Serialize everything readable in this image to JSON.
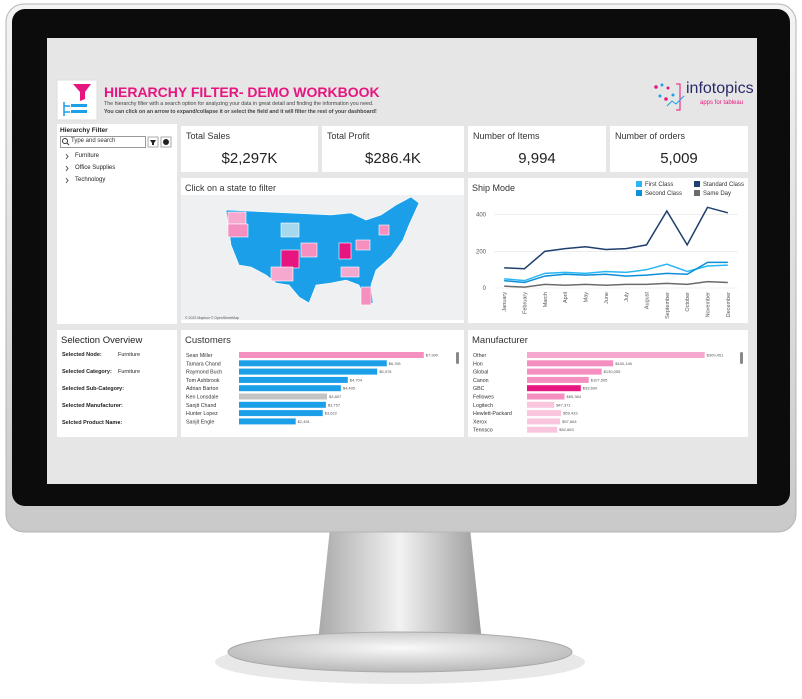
{
  "header": {
    "title": "HIERARCHY FILTER- DEMO WORKBOOK",
    "description": [
      "The hierarchy filter with a search option for analyzing your data in great detail and finding the information you need.",
      "You can click on an arrow to expand/collapse it or select the field and it will filter the rest of your dashboard!"
    ],
    "brand": "infotopics",
    "brand_tagline": "apps for tableau"
  },
  "filter": {
    "title": "Hierarchy Filter",
    "search_placeholder": "Type and search",
    "items": [
      "Furniture",
      "Office Supplies",
      "Technology"
    ]
  },
  "kpis": [
    {
      "label": "Total Sales",
      "value": "$2,297K"
    },
    {
      "label": "Total Profit",
      "value": "$286.4K"
    },
    {
      "label": "Number of Items",
      "value": "9,994"
    },
    {
      "label": "Number of orders",
      "value": "5,009"
    }
  ],
  "map": {
    "title": "Click on a state to filter",
    "attribution": "© 2022 Mapbox © OpenStreetMap"
  },
  "ship_mode": {
    "type": "line",
    "title": "Ship Mode",
    "categories": [
      "January",
      "February",
      "March",
      "April",
      "May",
      "June",
      "July",
      "August",
      "September",
      "October",
      "November",
      "December"
    ],
    "series": [
      {
        "name": "First Class",
        "color": "#29b6f6",
        "values": [
          50,
          40,
          80,
          85,
          80,
          90,
          85,
          100,
          130,
          90,
          120,
          125
        ]
      },
      {
        "name": "Second Class",
        "color": "#0a8fd8",
        "values": [
          40,
          30,
          65,
          75,
          70,
          75,
          65,
          70,
          80,
          75,
          140,
          140
        ]
      },
      {
        "name": "Standard Class",
        "color": "#1f3f6e",
        "values": [
          110,
          105,
          200,
          215,
          225,
          210,
          215,
          235,
          420,
          235,
          440,
          410
        ]
      },
      {
        "name": "Same Day",
        "color": "#6b6b6b",
        "values": [
          10,
          5,
          20,
          15,
          20,
          15,
          20,
          20,
          25,
          20,
          35,
          30
        ]
      }
    ],
    "ylim": [
      0,
      480
    ],
    "yticks": [
      0,
      200,
      400
    ],
    "grid": true
  },
  "selection": {
    "title": "Selection Overview",
    "fields": [
      {
        "label": "Selected Node:",
        "value": "Furniture"
      },
      {
        "label": "Selected Category:",
        "value": "Furniture"
      },
      {
        "label": "Selected Sub-Category:",
        "value": "-"
      },
      {
        "label": "Selected Manufacturer:",
        "value": "-"
      },
      {
        "label": "Selcted Product Name:",
        "value": "-"
      }
    ]
  },
  "customers": {
    "type": "bar",
    "title": "Customers",
    "categories": [
      "Sean Miller",
      "Tamara Chand",
      "Raymond Buch",
      "Tom Ashbrook",
      "Adrian Barton",
      "Ken Lonsdale",
      "Sanjit Chand",
      "Hunter Lopez",
      "Sanjit Engle"
    ],
    "values": [
      7990,
      6391,
      5976,
      4704,
      4405,
      3807,
      3757,
      3622,
      2451
    ],
    "value_labels": [
      "$7,990",
      "$6,391",
      "$5,976",
      "$4,704",
      "$4,405",
      "$3,807",
      "$3,757",
      "$3,622",
      "$2,451"
    ],
    "colors": [
      "#f48fc0",
      "#1a9fe8",
      "#1a9fe8",
      "#1a9fe8",
      "#1a9fe8",
      "#c4c4c4",
      "#1a9fe8",
      "#1a9fe8",
      "#1a9fe8"
    ],
    "xlim": [
      0,
      8000
    ]
  },
  "manufacturer": {
    "type": "bar",
    "title": "Manufacturer",
    "categories": [
      "Other",
      "Hon",
      "Global",
      "Canon",
      "GBC",
      "Fellowes",
      "Logitech",
      "Hewlett-Packard",
      "Xerox",
      "Tennsco"
    ],
    "values": [
      309451,
      150146,
      130055,
      107505,
      93690,
      65384,
      47371,
      59433,
      57664,
      52663
    ],
    "value_labels": [
      "$309,451",
      "$150,146",
      "$130,055",
      "$107,505",
      "$93,690",
      "$65,384",
      "$47,371",
      "$59,433",
      "$57,664",
      "$52,663"
    ],
    "colors": [
      "#f7a8cf",
      "#f48fc0",
      "#f48fc0",
      "#f48fc0",
      "#e6157f",
      "#f48fc0",
      "#f9c6de",
      "#f9c6de",
      "#f9c6de",
      "#f9c6de"
    ],
    "xlim": [
      0,
      310000
    ]
  }
}
